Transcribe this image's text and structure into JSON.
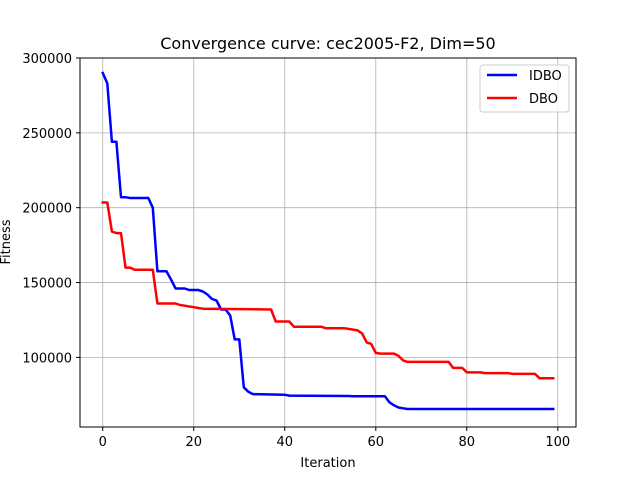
{
  "chart_data": {
    "type": "line",
    "title": "Convergence curve:  cec2005-F2, Dim=50",
    "xlabel": "Iteration",
    "ylabel": "Fitness",
    "xlim": [
      -5,
      104
    ],
    "ylim": [
      53500,
      300000
    ],
    "xticks": [
      0,
      20,
      40,
      60,
      80,
      100
    ],
    "yticks": [
      100000,
      150000,
      200000,
      250000,
      300000
    ],
    "grid": true,
    "legend_position": "top-right",
    "series": [
      {
        "name": "IDBO",
        "color": "#0000ff",
        "x": [
          0,
          1,
          2,
          3,
          4,
          5,
          6,
          10,
          11,
          12,
          13,
          14,
          15,
          16,
          17,
          18,
          19,
          20,
          21,
          22,
          23,
          24,
          25,
          26,
          27,
          28,
          29,
          30,
          31,
          32,
          33,
          40,
          41,
          54,
          55,
          62,
          63,
          64,
          65,
          66,
          67,
          99
        ],
        "y": [
          290000,
          283000,
          244000,
          244000,
          207000,
          207000,
          206500,
          206500,
          200000,
          157500,
          157500,
          157500,
          152000,
          146000,
          146000,
          146000,
          145000,
          145000,
          145000,
          144000,
          142000,
          139000,
          138000,
          132000,
          132000,
          128000,
          112000,
          112000,
          80000,
          77000,
          75500,
          75000,
          74500,
          74200,
          74000,
          74000,
          70000,
          68000,
          66500,
          66000,
          65500,
          65500
        ]
      },
      {
        "name": "DBO",
        "color": "#ff0000",
        "x": [
          0,
          1,
          2,
          3,
          4,
          5,
          6,
          7,
          11,
          12,
          16,
          17,
          18,
          19,
          20,
          21,
          22,
          37,
          38,
          41,
          42,
          48,
          49,
          53,
          54,
          56,
          57,
          58,
          59,
          60,
          61,
          64,
          65,
          66,
          67,
          76,
          77,
          79,
          80,
          83,
          84,
          89,
          90,
          95,
          96,
          99
        ],
        "y": [
          203500,
          203500,
          184000,
          183000,
          183000,
          160000,
          160000,
          158500,
          158500,
          136000,
          136000,
          135000,
          134500,
          134000,
          133500,
          133000,
          132500,
          132000,
          124000,
          124000,
          120500,
          120500,
          119500,
          119500,
          119000,
          118000,
          116000,
          110000,
          109000,
          103000,
          102500,
          102500,
          101000,
          98000,
          97000,
          97000,
          93000,
          93000,
          90000,
          90000,
          89500,
          89500,
          89000,
          89000,
          86000,
          86000
        ]
      }
    ]
  }
}
